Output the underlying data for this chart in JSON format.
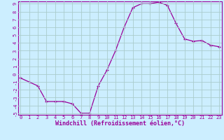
{
  "hours": [
    0,
    1,
    2,
    3,
    4,
    5,
    6,
    7,
    8,
    9,
    10,
    11,
    12,
    13,
    14,
    15,
    16,
    17,
    18,
    19,
    20,
    21,
    22,
    23
  ],
  "windchill": [
    -0.5,
    -1.0,
    -1.5,
    -3.5,
    -3.5,
    -3.5,
    -3.8,
    -5.0,
    -5.0,
    -1.5,
    0.5,
    3.0,
    6.0,
    8.5,
    9.0,
    9.0,
    9.2,
    8.8,
    6.5,
    4.5,
    4.2,
    4.3,
    3.7,
    3.5
  ],
  "line_color": "#990099",
  "marker": "+",
  "bg_color": "#cceeff",
  "grid_color": "#aacccc",
  "axis_color": "#990099",
  "xlabel": "Windchill (Refroidissement éolien,°C)",
  "ylim_min": -5,
  "ylim_max": 9,
  "xlim_min": 0,
  "xlim_max": 23,
  "ytick_step": 1,
  "xtick_labels": [
    "0",
    "1",
    "2",
    "3",
    "4",
    "5",
    "6",
    "7",
    "8",
    "9",
    "10",
    "11",
    "12",
    "13",
    "14",
    "15",
    "16",
    "17",
    "18",
    "19",
    "20",
    "21",
    "22",
    "23"
  ]
}
